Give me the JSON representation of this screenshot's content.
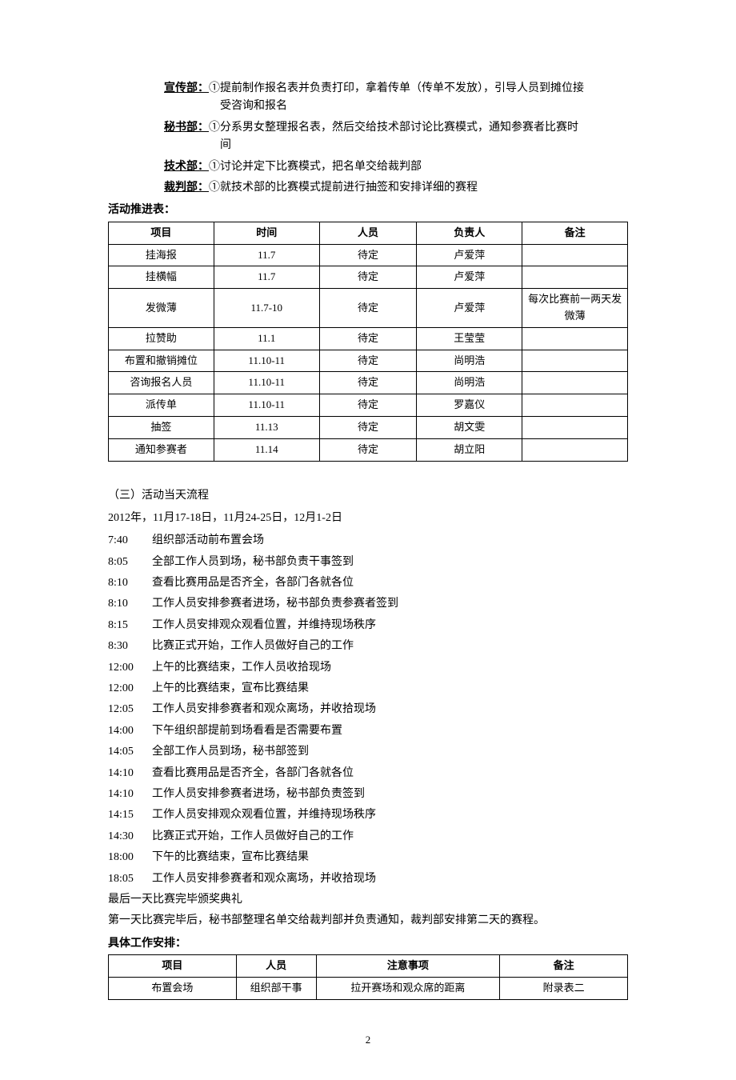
{
  "departments": [
    {
      "label": "宣传部：",
      "lines": [
        "①提前制作报名表并负责打印，拿着传单（传单不发放），引导人员到摊位接",
        "受咨询和报名"
      ]
    },
    {
      "label": "秘书部：",
      "lines": [
        "①分系男女整理报名表，然后交给技术部讨论比赛模式，通知参赛者比赛时",
        "间"
      ]
    },
    {
      "label": "技术部：",
      "lines": [
        "①讨论并定下比赛模式，把名单交给裁判部"
      ]
    },
    {
      "label": "裁判部：",
      "lines": [
        "①就技术部的比赛模式提前进行抽签和安排详细的赛程"
      ]
    }
  ],
  "progTitle": "活动推进表：",
  "progHeaders": [
    "项目",
    "时间",
    "人员",
    "负责人",
    "备注"
  ],
  "progRows": [
    [
      "挂海报",
      "11.7",
      "待定",
      "卢爱萍",
      ""
    ],
    [
      "挂横幅",
      "11.7",
      "待定",
      "卢爱萍",
      ""
    ],
    [
      "发微薄",
      "11.7-10",
      "待定",
      "卢爱萍",
      "每次比赛前一两天发微薄"
    ],
    [
      "拉赞助",
      "11.1",
      "待定",
      "王莹莹",
      ""
    ],
    [
      "布置和撤销摊位",
      "11.10-11",
      "待定",
      "尚明浩",
      ""
    ],
    [
      "咨询报名人员",
      "11.10-11",
      "待定",
      "尚明浩",
      ""
    ],
    [
      "派传单",
      "11.10-11",
      "待定",
      "罗嘉仪",
      ""
    ],
    [
      "抽签",
      "11.13",
      "待定",
      "胡文雯",
      ""
    ],
    [
      "通知参赛者",
      "11.14",
      "待定",
      "胡立阳",
      ""
    ]
  ],
  "flowTitle": "（三）活动当天流程",
  "flowDate": "2012年，11月17-18日，11月24-25日，12月1-2日",
  "schedule": [
    {
      "time": "7:40",
      "text": "组织部活动前布置会场"
    },
    {
      "time": "8:05",
      "text": "全部工作人员到场，秘书部负责干事签到"
    },
    {
      "time": "8:10",
      "text": "查看比赛用品是否齐全，各部门各就各位"
    },
    {
      "time": "8:10",
      "text": "工作人员安排参赛者进场，秘书部负责参赛者签到"
    },
    {
      "time": "8:15",
      "text": "工作人员安排观众观看位置，并维持现场秩序"
    },
    {
      "time": "8:30",
      "text": "比赛正式开始，工作人员做好自己的工作"
    },
    {
      "time": "12:00",
      "text": "上午的比赛结束，工作人员收拾现场"
    },
    {
      "time": "12:00",
      "text": "上午的比赛结束，宣布比赛结果"
    },
    {
      "time": "12:05",
      "text": "工作人员安排参赛者和观众离场，并收拾现场"
    },
    {
      "time": "14:00",
      "text": "下午组织部提前到场看看是否需要布置"
    },
    {
      "time": "14:05",
      "text": "全部工作人员到场，秘书部签到"
    },
    {
      "time": "14:10",
      "text": "查看比赛用品是否齐全，各部门各就各位"
    },
    {
      "time": "14:10",
      "text": "工作人员安排参赛者进场，秘书部负责签到"
    },
    {
      "time": "14:15",
      "text": "工作人员安排观众观看位置，并维持现场秩序"
    },
    {
      "time": "14:30",
      "text": "比赛正式开始，工作人员做好自己的工作"
    },
    {
      "time": "18:00",
      "text": "下午的比赛结束，宣布比赛结果"
    },
    {
      "time": "18:05",
      "text": "工作人员安排参赛者和观众离场，并收拾现场"
    }
  ],
  "afterNote1": "最后一天比赛完毕颁奖典礼",
  "afterNote2": "第一天比赛完毕后，秘书部整理名单交给裁判部并负责通知，裁判部安排第二天的赛程。",
  "workTitle": "具体工作安排：",
  "workHeaders": [
    "项目",
    "人员",
    "注意事项",
    "备注"
  ],
  "workRows": [
    [
      "布置会场",
      "组织部干事",
      "拉开赛场和观众席的距离",
      "附录表二"
    ]
  ],
  "pageNumber": "2"
}
